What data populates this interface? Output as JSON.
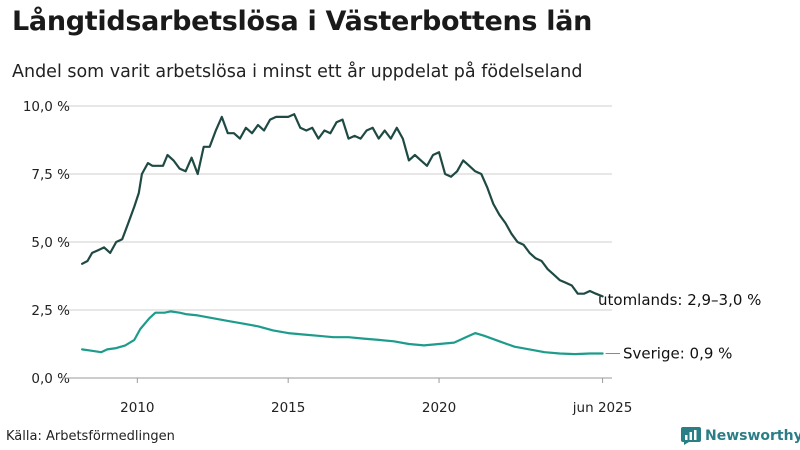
{
  "header": {
    "title": "Långtidsarbetslösa i Västerbottens län",
    "subtitle": "Andel som varit arbetslösa i minst ett år uppdelat på födelseland"
  },
  "footer": {
    "source": "Källa: Arbetsförmedlingen",
    "brand": "Newsworthy"
  },
  "colors": {
    "utomlands": "#1f4a43",
    "sverige": "#1d9c8c",
    "grid": "#cfcfcf",
    "axis": "#9a9a9a",
    "brand": "#2a7f86"
  },
  "chart_data": {
    "type": "line",
    "x_tick_labels": [
      "2010",
      "2015",
      "2020",
      "jun 2025"
    ],
    "x_ticks": [
      2010,
      2015,
      2020,
      2025.42
    ],
    "xlim": [
      2008.1,
      2025.6
    ],
    "y_tick_labels": [
      "0,0 %",
      "2,5 %",
      "5,0 %",
      "7,5 %",
      "10,0 %"
    ],
    "y_ticks": [
      0,
      2.5,
      5,
      7.5,
      10
    ],
    "ylim": [
      0,
      10
    ],
    "grid": "horizontal",
    "legend": "end-of-line labels",
    "series": [
      {
        "name": "utomlands",
        "end_label": "utomlands: 2,9–3,0 %",
        "x": [
          2008.17,
          2008.35,
          2008.5,
          2008.7,
          2008.9,
          2009.1,
          2009.3,
          2009.5,
          2009.7,
          2009.9,
          2010.05,
          2010.15,
          2010.35,
          2010.5,
          2010.7,
          2010.85,
          2011.0,
          2011.2,
          2011.4,
          2011.6,
          2011.8,
          2012.0,
          2012.2,
          2012.4,
          2012.6,
          2012.8,
          2013.0,
          2013.2,
          2013.4,
          2013.6,
          2013.8,
          2014.0,
          2014.2,
          2014.4,
          2014.6,
          2014.8,
          2015.0,
          2015.2,
          2015.4,
          2015.6,
          2015.8,
          2016.0,
          2016.2,
          2016.4,
          2016.6,
          2016.8,
          2017.0,
          2017.2,
          2017.4,
          2017.6,
          2017.8,
          2018.0,
          2018.2,
          2018.4,
          2018.6,
          2018.8,
          2019.0,
          2019.2,
          2019.4,
          2019.6,
          2019.8,
          2020.0,
          2020.2,
          2020.4,
          2020.6,
          2020.8,
          2021.0,
          2021.2,
          2021.4,
          2021.6,
          2021.8,
          2022.0,
          2022.2,
          2022.4,
          2022.6,
          2022.8,
          2023.0,
          2023.2,
          2023.4,
          2023.6,
          2023.8,
          2024.0,
          2024.2,
          2024.4,
          2024.6,
          2024.8,
          2025.0,
          2025.2,
          2025.42
        ],
        "y": [
          4.2,
          4.3,
          4.6,
          4.7,
          4.8,
          4.6,
          5.0,
          5.1,
          5.7,
          6.3,
          6.8,
          7.5,
          7.9,
          7.8,
          7.8,
          7.8,
          8.2,
          8.0,
          7.7,
          7.6,
          8.1,
          7.5,
          8.5,
          8.5,
          9.1,
          9.6,
          9.0,
          9.0,
          8.8,
          9.2,
          9.0,
          9.3,
          9.1,
          9.5,
          9.6,
          9.6,
          9.6,
          9.7,
          9.2,
          9.1,
          9.2,
          8.8,
          9.1,
          9.0,
          9.4,
          9.5,
          8.8,
          8.9,
          8.8,
          9.1,
          9.2,
          8.8,
          9.1,
          8.8,
          9.2,
          8.8,
          8.0,
          8.2,
          8.0,
          7.8,
          8.2,
          8.3,
          7.5,
          7.4,
          7.6,
          8.0,
          7.8,
          7.6,
          7.5,
          7.0,
          6.4,
          6.0,
          5.7,
          5.3,
          5.0,
          4.9,
          4.6,
          4.4,
          4.3,
          4.0,
          3.8,
          3.6,
          3.5,
          3.4,
          3.1,
          3.1,
          3.2,
          3.1,
          3.0
        ]
      },
      {
        "name": "Sverige",
        "end_label": "Sverige: 0,9 %",
        "x": [
          2008.17,
          2008.5,
          2008.8,
          2009.0,
          2009.3,
          2009.6,
          2009.9,
          2010.1,
          2010.4,
          2010.6,
          2010.9,
          2011.1,
          2011.4,
          2011.6,
          2012.0,
          2012.5,
          2013.0,
          2013.5,
          2014.0,
          2014.5,
          2015.0,
          2015.5,
          2016.0,
          2016.5,
          2017.0,
          2017.5,
          2018.0,
          2018.5,
          2019.0,
          2019.5,
          2020.0,
          2020.5,
          2021.0,
          2021.2,
          2021.5,
          2022.0,
          2022.5,
          2023.0,
          2023.5,
          2024.0,
          2024.5,
          2025.0,
          2025.42
        ],
        "y": [
          1.05,
          1.0,
          0.95,
          1.05,
          1.1,
          1.2,
          1.4,
          1.8,
          2.2,
          2.4,
          2.4,
          2.45,
          2.4,
          2.35,
          2.3,
          2.2,
          2.1,
          2.0,
          1.9,
          1.75,
          1.65,
          1.6,
          1.55,
          1.5,
          1.5,
          1.45,
          1.4,
          1.35,
          1.25,
          1.2,
          1.25,
          1.3,
          1.55,
          1.65,
          1.55,
          1.35,
          1.15,
          1.05,
          0.95,
          0.9,
          0.88,
          0.9,
          0.9
        ]
      }
    ]
  }
}
